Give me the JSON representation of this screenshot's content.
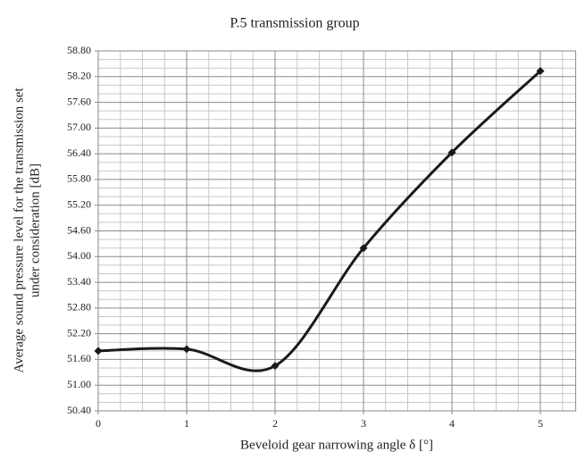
{
  "chart_data": {
    "type": "line",
    "title": "P.5 transmission group",
    "xlabel": "Beveloid gear narrowing angle δ [°]",
    "ylabel": [
      "Average sound pressure level for the transmission set",
      "under consideration [dB]"
    ],
    "x": [
      0,
      1,
      2,
      3,
      4,
      5
    ],
    "series": [
      {
        "name": "P.5",
        "color": "#1a1a1a",
        "values": [
          51.8,
          51.84,
          51.45,
          54.2,
          56.43,
          58.33
        ]
      }
    ],
    "smooth": true,
    "marker": "diamond",
    "xlim": [
      0,
      5.4
    ],
    "ylim": [
      50.4,
      58.8
    ],
    "xticks": [
      0,
      1,
      2,
      3,
      4,
      5
    ],
    "yticks": [
      {
        "value": 50.4,
        "label": "50.40"
      },
      {
        "value": 51,
        "label": "51.00"
      },
      {
        "value": 51.6,
        "label": "51.60"
      },
      {
        "value": 52.2,
        "label": "52.20"
      },
      {
        "value": 52.8,
        "label": "52.80"
      },
      {
        "value": 53.4,
        "label": "53.40"
      },
      {
        "value": 54,
        "label": "54.00"
      },
      {
        "value": 54.6,
        "label": "54.60"
      },
      {
        "value": 55.2,
        "label": "55.20"
      },
      {
        "value": 55.8,
        "label": "55.80"
      },
      {
        "value": 56.4,
        "label": "56.40"
      },
      {
        "value": 57,
        "label": "57.00"
      },
      {
        "value": 57.6,
        "label": "57.60"
      },
      {
        "value": 58.2,
        "label": "58.20"
      },
      {
        "value": 58.8,
        "label": "58.80"
      }
    ],
    "xminorticks": [
      0.25,
      0.5,
      0.75,
      1.25,
      1.5,
      1.75,
      2.25,
      2.5,
      2.75,
      3.25,
      3.5,
      3.75,
      4.25,
      4.5,
      4.75,
      5.25
    ],
    "yminorticks": [
      50.6,
      50.8,
      51.2,
      51.4,
      51.8,
      52,
      52.4,
      52.6,
      53,
      53.2,
      53.6,
      53.8,
      54.2,
      54.4,
      54.8,
      55,
      55.4,
      55.6,
      56,
      56.2,
      56.6,
      56.8,
      57.2,
      57.4,
      57.8,
      58,
      58.4,
      58.6
    ],
    "grid": true
  }
}
